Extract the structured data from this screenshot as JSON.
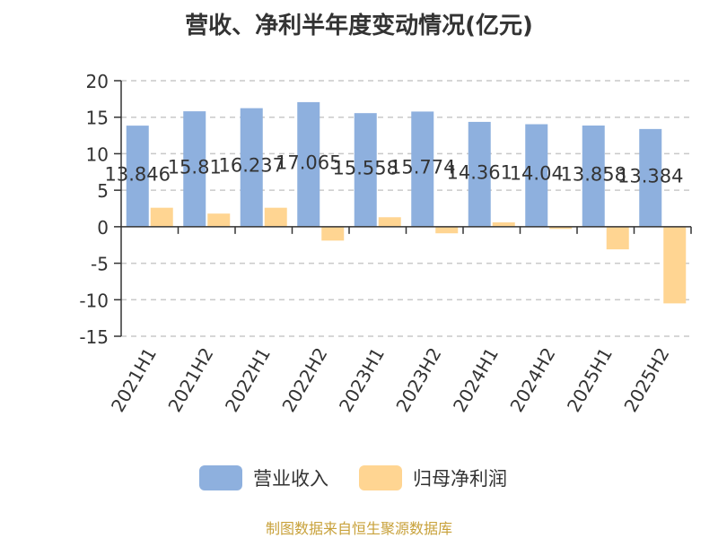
{
  "title": "营收、净利半年度变动情况(亿元)",
  "source": "制图数据来自恒生聚源数据库",
  "colors": {
    "revenue": "#8eb0de",
    "profit": "#ffd592",
    "grid": "#c9c9c9",
    "axis": "#333333"
  },
  "chart_data": {
    "type": "bar",
    "title": "营收、净利半年度变动情况(亿元)",
    "categories": [
      "2021H1",
      "2021H2",
      "2022H1",
      "2022H2",
      "2023H1",
      "2023H2",
      "2024H1",
      "2024H2",
      "2025H1",
      "2025H2"
    ],
    "series": [
      {
        "name": "营业收入",
        "values": [
          13.846,
          15.81,
          16.237,
          17.065,
          15.558,
          15.774,
          14.361,
          14.04,
          13.858,
          13.384
        ]
      },
      {
        "name": "归母净利润",
        "values": [
          2.6,
          1.8,
          2.6,
          -1.9,
          1.3,
          -0.9,
          0.6,
          -0.3,
          -3.1,
          -10.5
        ]
      }
    ],
    "data_labels": [
      "13.846",
      "15.81",
      "16.237",
      "17.065",
      "15.558",
      "15.774",
      "14.361",
      "14.04",
      "13.858",
      "13.384"
    ],
    "ylim": [
      -15,
      20
    ],
    "yticks": [
      -15,
      -10,
      -5,
      0,
      5,
      10,
      15,
      20
    ],
    "grid": true,
    "legend": "bottom"
  }
}
